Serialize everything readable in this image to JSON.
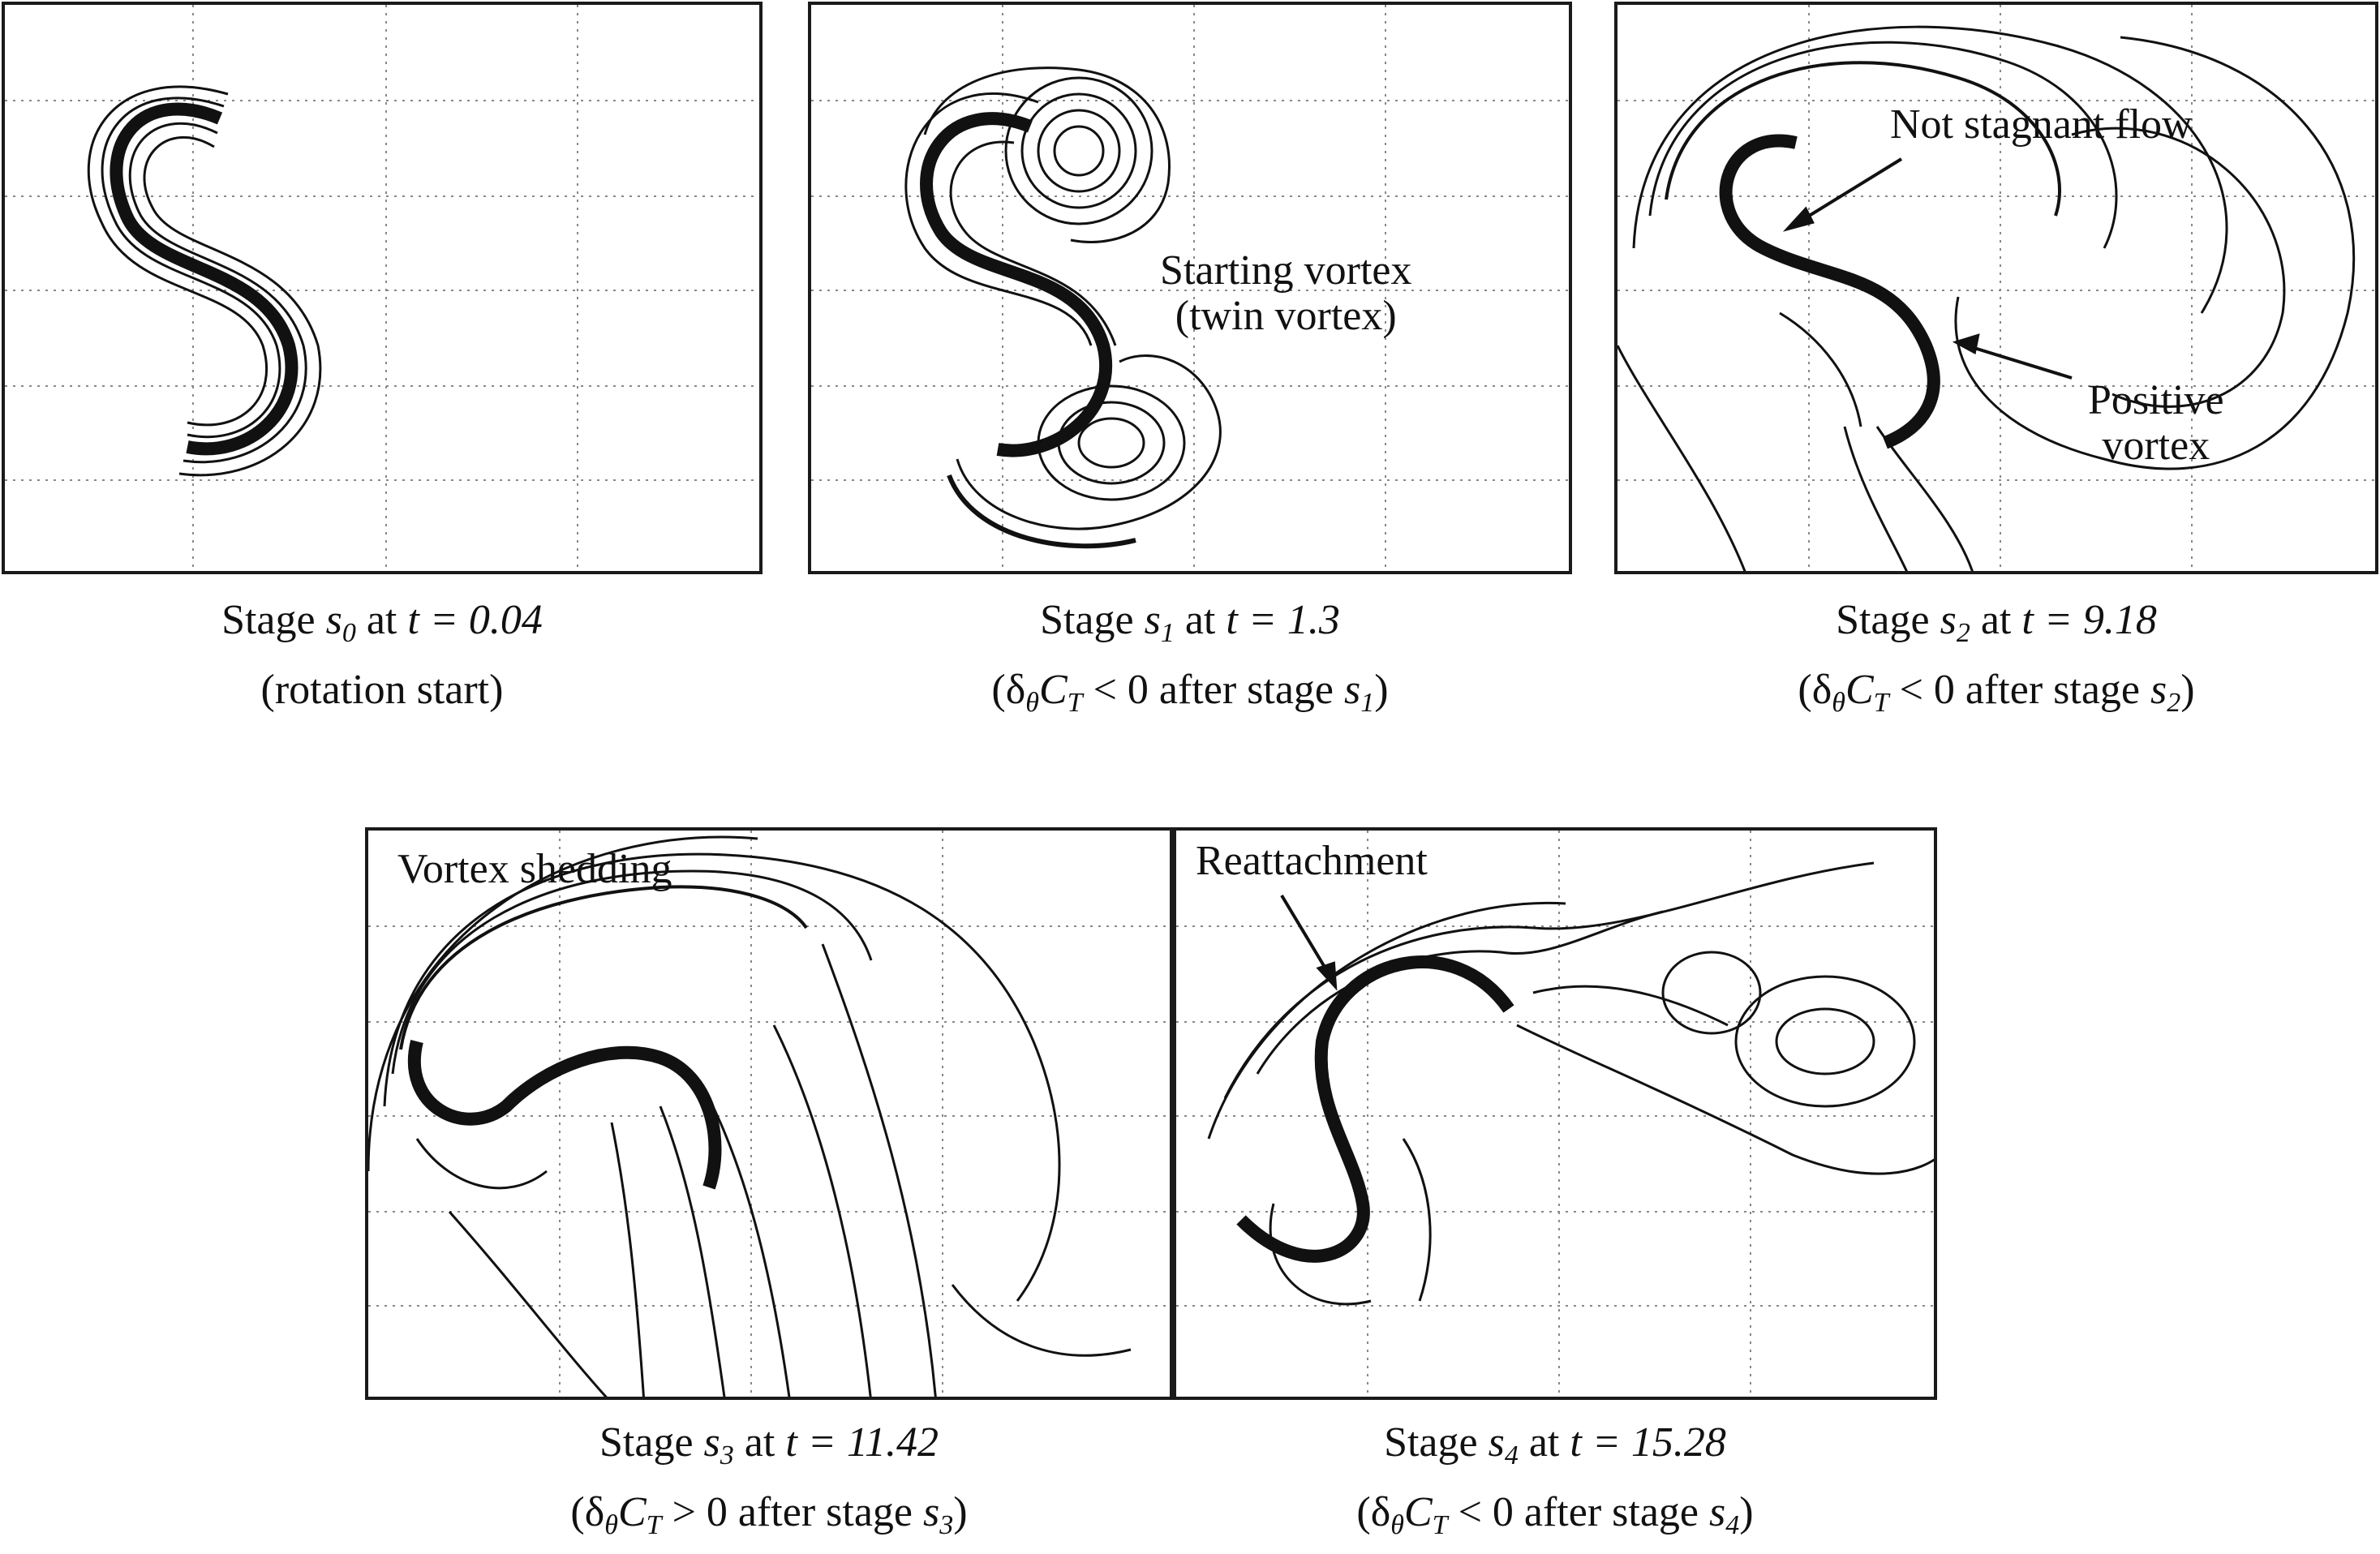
{
  "figure": {
    "panels": [
      {
        "stage_label": "Stage",
        "stage_symbol": "s",
        "stage_index": "0",
        "time_text": "at",
        "t_expr": "t = 0.04",
        "note": "(rotation start)"
      },
      {
        "stage_label": "Stage",
        "stage_symbol": "s",
        "stage_index": "1",
        "time_text": "at",
        "t_expr": "t = 1.3",
        "note_prefix": "(δ",
        "note_theta": "θ",
        "note_ct": "C",
        "note_ct_sub": "T",
        "note_rel": " < 0 after stage ",
        "note_s": "s",
        "note_s_sub": "1",
        "note_close": ")",
        "annotation_line1": "Starting vortex",
        "annotation_line2": "(twin vortex)"
      },
      {
        "stage_label": "Stage",
        "stage_symbol": "s",
        "stage_index": "2",
        "time_text": "at",
        "t_expr": "t = 9.18",
        "note_prefix": "(δ",
        "note_theta": "θ",
        "note_ct": "C",
        "note_ct_sub": "T",
        "note_rel": " < 0 after stage ",
        "note_s": "s",
        "note_s_sub": "2",
        "note_close": ")",
        "annotation_a": "Not stagnant flow",
        "annotation_b_line1": "Positive",
        "annotation_b_line2": "vortex"
      },
      {
        "stage_label": "Stage",
        "stage_symbol": "s",
        "stage_index": "3",
        "time_text": "at",
        "t_expr": "t = 11.42",
        "note_prefix": "(δ",
        "note_theta": "θ",
        "note_ct": "C",
        "note_ct_sub": "T",
        "note_rel": " > 0 after stage ",
        "note_s": "s",
        "note_s_sub": "3",
        "note_close": ")",
        "annotation": "Vortex shedding"
      },
      {
        "stage_label": "Stage",
        "stage_symbol": "s",
        "stage_index": "4",
        "time_text": "at",
        "t_expr": "t = 15.28",
        "note_prefix": "(δ",
        "note_theta": "θ",
        "note_ct": "C",
        "note_ct_sub": "T",
        "note_rel": " < 0 after stage ",
        "note_s": "s",
        "note_s_sub": "4",
        "note_close": ")",
        "annotation": "Reattachment"
      }
    ]
  }
}
